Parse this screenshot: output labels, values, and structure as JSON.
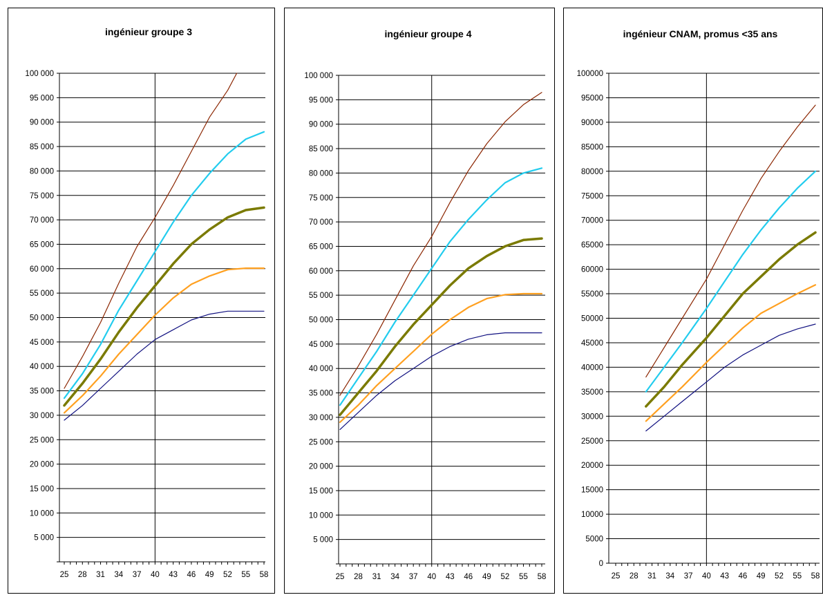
{
  "chart_data": [
    {
      "type": "line",
      "title": "ingénieur groupe 3",
      "ylim": [
        0,
        100000
      ],
      "xlim": [
        25,
        58
      ],
      "y_ticks": [
        "",
        "5 000",
        "10 000",
        "15 000",
        "20 000",
        "25 000",
        "30 000",
        "35 000",
        "40 000",
        "45 000",
        "50 000",
        "55 000",
        "60 000",
        "65 000",
        "70 000",
        "75 000",
        "80 000",
        "85 000",
        "90 000",
        "95 000",
        "100 000"
      ],
      "x_ticks": [
        "25",
        "28",
        "31",
        "34",
        "37",
        "40",
        "43",
        "46",
        "49",
        "52",
        "55",
        "58"
      ],
      "vline": 40,
      "grid": "horizontal",
      "series": [
        {
          "color": "#8B2500",
          "width": 1.2,
          "x": [
            25,
            28,
            31,
            34,
            37,
            40,
            43,
            46,
            49,
            52,
            53.5
          ],
          "y": [
            35500,
            42000,
            49000,
            57000,
            64500,
            70500,
            77000,
            84000,
            91000,
            96500,
            100000
          ]
        },
        {
          "color": "#22CCEE",
          "width": 2.2,
          "x": [
            25,
            28,
            31,
            34,
            37,
            40,
            43,
            46,
            49,
            52,
            55,
            58
          ],
          "y": [
            33500,
            38500,
            44500,
            51500,
            57500,
            63500,
            69500,
            75000,
            79500,
            83500,
            86500,
            88000
          ]
        },
        {
          "color": "#7A7A00",
          "width": 3.5,
          "x": [
            25,
            28,
            31,
            34,
            37,
            40,
            43,
            46,
            49,
            52,
            55,
            58
          ],
          "y": [
            32000,
            36500,
            41500,
            47000,
            52000,
            56500,
            61000,
            65000,
            68000,
            70500,
            72000,
            72500
          ]
        },
        {
          "color": "#FFA020",
          "width": 2.2,
          "x": [
            25,
            28,
            31,
            34,
            37,
            40,
            43,
            46,
            49,
            52,
            55,
            58
          ],
          "y": [
            30500,
            34000,
            38000,
            42500,
            46500,
            50500,
            54000,
            56800,
            58500,
            59800,
            60100,
            60100
          ]
        },
        {
          "color": "#101080",
          "width": 1.2,
          "x": [
            25,
            28,
            31,
            34,
            37,
            40,
            43,
            46,
            49,
            52,
            55,
            58
          ],
          "y": [
            29000,
            32000,
            35500,
            39000,
            42500,
            45500,
            47500,
            49500,
            50700,
            51300,
            51300,
            51300
          ]
        }
      ]
    },
    {
      "type": "line",
      "title": "ingénieur groupe 4",
      "ylim": [
        0,
        100000
      ],
      "xlim": [
        25,
        58
      ],
      "y_ticks": [
        "",
        "5 000",
        "10 000",
        "15 000",
        "20 000",
        "25 000",
        "30 000",
        "35 000",
        "40 000",
        "45 000",
        "50 000",
        "55 000",
        "60 000",
        "65 000",
        "70 000",
        "75 000",
        "80 000",
        "85 000",
        "90 000",
        "95 000",
        "100 000"
      ],
      "x_ticks": [
        "25",
        "28",
        "31",
        "34",
        "37",
        "40",
        "43",
        "46",
        "49",
        "52",
        "55",
        "58"
      ],
      "vline": 40,
      "grid": "horizontal",
      "series": [
        {
          "color": "#8B2500",
          "width": 1.2,
          "x": [
            25,
            28,
            31,
            34,
            37,
            40,
            43,
            46,
            49,
            52,
            55,
            58
          ],
          "y": [
            34500,
            40500,
            47000,
            54000,
            61000,
            67000,
            74000,
            80500,
            86000,
            90500,
            94000,
            96500
          ]
        },
        {
          "color": "#22CCEE",
          "width": 2.2,
          "x": [
            25,
            28,
            31,
            34,
            37,
            40,
            43,
            46,
            49,
            52,
            55,
            58
          ],
          "y": [
            32500,
            38000,
            43500,
            49500,
            55000,
            60500,
            66000,
            70500,
            74500,
            78000,
            80000,
            81000
          ]
        },
        {
          "color": "#7A7A00",
          "width": 3.5,
          "x": [
            25,
            28,
            31,
            34,
            37,
            40,
            43,
            46,
            49,
            52,
            55,
            58
          ],
          "y": [
            30500,
            35000,
            39500,
            44500,
            49000,
            53000,
            57000,
            60500,
            63000,
            65000,
            66300,
            66600
          ]
        },
        {
          "color": "#FFA020",
          "width": 2.2,
          "x": [
            25,
            28,
            31,
            34,
            37,
            40,
            43,
            46,
            49,
            52,
            55,
            58
          ],
          "y": [
            29000,
            32500,
            36500,
            40000,
            43500,
            47000,
            50000,
            52500,
            54300,
            55100,
            55300,
            55300
          ]
        },
        {
          "color": "#101080",
          "width": 1.2,
          "x": [
            25,
            28,
            31,
            34,
            37,
            40,
            43,
            46,
            49,
            52,
            55,
            58
          ],
          "y": [
            27500,
            31000,
            34500,
            37500,
            40000,
            42500,
            44500,
            46000,
            46900,
            47300,
            47300,
            47300
          ]
        }
      ]
    },
    {
      "type": "line",
      "title": "ingénieur CNAM, promus <35 ans",
      "ylim": [
        0,
        100000
      ],
      "xlim": [
        25,
        58
      ],
      "y_ticks": [
        "0",
        "5000",
        "10000",
        "15000",
        "20000",
        "25000",
        "30000",
        "35000",
        "40000",
        "45000",
        "50000",
        "55000",
        "60000",
        "65000",
        "70000",
        "75000",
        "80000",
        "85000",
        "90000",
        "95000",
        "100000"
      ],
      "x_ticks": [
        "25",
        "28",
        "31",
        "34",
        "37",
        "40",
        "43",
        "46",
        "49",
        "52",
        "55",
        "58"
      ],
      "vline": 40,
      "grid": "horizontal",
      "series": [
        {
          "color": "#8B2500",
          "width": 1.2,
          "x": [
            30,
            33,
            36,
            40,
            43,
            46,
            49,
            52,
            55,
            58
          ],
          "y": [
            38000,
            44000,
            50000,
            58000,
            65000,
            72000,
            78500,
            84000,
            89000,
            93500
          ]
        },
        {
          "color": "#22CCEE",
          "width": 2.2,
          "x": [
            30,
            33,
            36,
            40,
            43,
            46,
            49,
            52,
            55,
            58
          ],
          "y": [
            35000,
            40000,
            45000,
            52000,
            57500,
            63000,
            68000,
            72500,
            76500,
            80000
          ]
        },
        {
          "color": "#7A7A00",
          "width": 3.5,
          "x": [
            30,
            33,
            36,
            40,
            43,
            46,
            49,
            52,
            55,
            58
          ],
          "y": [
            32000,
            36000,
            40500,
            46000,
            50500,
            55000,
            58500,
            62000,
            65000,
            67500
          ]
        },
        {
          "color": "#FFA020",
          "width": 2.2,
          "x": [
            30,
            33,
            36,
            40,
            43,
            46,
            49,
            52,
            55,
            58
          ],
          "y": [
            29000,
            32500,
            36000,
            41000,
            44500,
            48000,
            51000,
            53000,
            55000,
            56800
          ]
        },
        {
          "color": "#101080",
          "width": 1.2,
          "x": [
            30,
            33,
            36,
            40,
            43,
            46,
            49,
            52,
            55,
            58
          ],
          "y": [
            27000,
            30000,
            33000,
            37000,
            40000,
            42500,
            44500,
            46500,
            47800,
            48800
          ]
        }
      ]
    }
  ]
}
